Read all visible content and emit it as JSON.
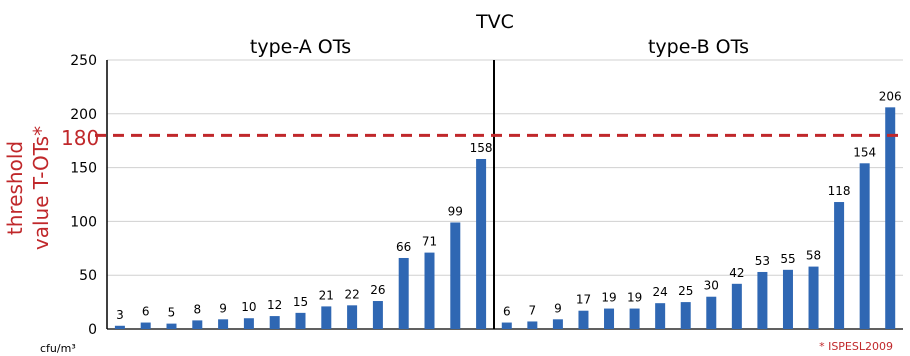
{
  "chart_data": {
    "type": "bar",
    "title": "TVC",
    "unit_label": "cfu/m³",
    "source_note": "* ISPESL2009",
    "threshold": {
      "value": 180,
      "value_label": "180",
      "label_line1": "threshold",
      "label_line2": "value T-OTs*",
      "color": "#c0282b"
    },
    "ylim": [
      0,
      250
    ],
    "yticks": [
      0,
      50,
      100,
      150,
      200,
      250
    ],
    "grid": true,
    "bar_color": "#2f67b3",
    "panels": [
      {
        "title": "type-A OTs",
        "values": [
          3,
          6,
          5,
          8,
          9,
          10,
          12,
          15,
          21,
          22,
          26,
          66,
          71,
          99,
          158
        ]
      },
      {
        "title": "type-B OTs",
        "values": [
          6,
          7,
          9,
          17,
          19,
          19,
          24,
          25,
          30,
          42,
          53,
          55,
          58,
          118,
          154,
          206
        ]
      }
    ]
  }
}
